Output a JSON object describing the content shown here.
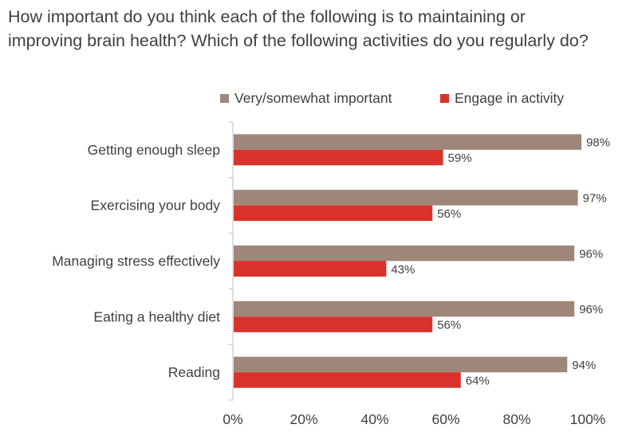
{
  "title_line1": "How important do you think each of the following is to maintaining or",
  "title_line2": "improving brain health? Which of the following activities do you regularly do?",
  "chart_data": {
    "type": "bar",
    "orientation": "horizontal",
    "title": "How important do you think each of the following is to maintaining or improving brain health? Which of the following activities do you regularly do?",
    "categories": [
      "Getting enough sleep",
      "Exercising your body",
      "Managing stress effectively",
      "Eating a healthy diet",
      "Reading"
    ],
    "series": [
      {
        "name": "Very/somewhat important",
        "color": "#9e8779",
        "values": [
          98,
          97,
          96,
          96,
          94
        ],
        "labels": [
          "98%",
          "97%",
          "96%",
          "96%",
          "94%"
        ]
      },
      {
        "name": "Engage in activity",
        "color": "#d9322a",
        "values": [
          59,
          56,
          43,
          56,
          64
        ],
        "labels": [
          "59%",
          "56%",
          "43%",
          "56%",
          "64%"
        ]
      }
    ],
    "xlim": [
      0,
      100
    ],
    "xticks": [
      0,
      20,
      40,
      60,
      80,
      100
    ],
    "xtick_labels": [
      "0%",
      "20%",
      "40%",
      "60%",
      "80%",
      "100%"
    ],
    "xlabel": "",
    "ylabel": "",
    "legend": "top",
    "grid": false
  }
}
